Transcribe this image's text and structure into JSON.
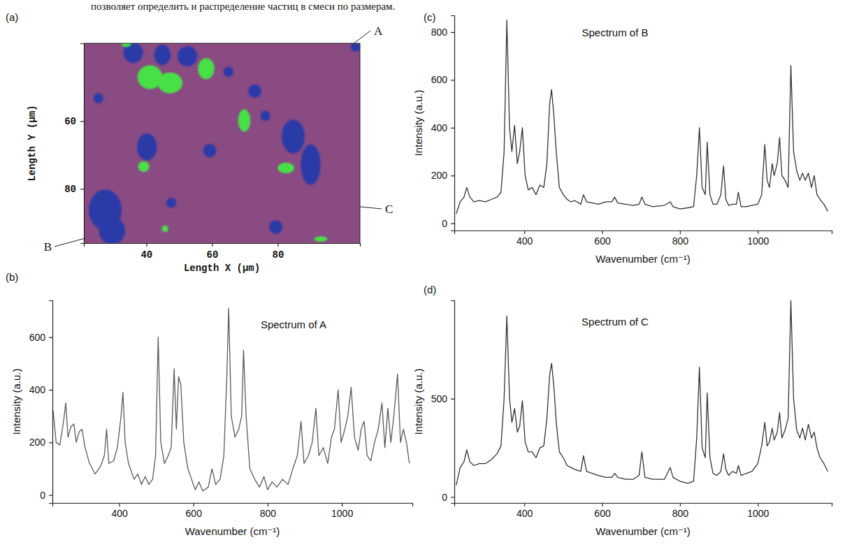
{
  "page_text": "позволяет определить и распределение частиц в смеси по размерам.",
  "chart_data": [
    {
      "type": "map",
      "label": "(a)",
      "xlabel": "Length X (µm)",
      "ylabel": "Length Y (µm)",
      "color": "#8a4a82",
      "xlim": [
        21,
        105
      ],
      "ylim": [
        37,
        96
      ],
      "xticks": [
        40,
        60,
        80
      ],
      "yticks": [
        60,
        80
      ],
      "grid": false,
      "annotations": [
        {
          "text": "A"
        },
        {
          "text": "B"
        },
        {
          "text": "C"
        }
      ],
      "series": [
        {
          "color": "#2b3aa8",
          "x": [
            36.0,
            44.9,
            52.5,
            65.0,
            73.0,
            76.2,
            40.2,
            59.3,
            84.7,
            90.0,
            27.5,
            29.6,
            47.6,
            79.4,
            103.7,
            25.4
          ],
          "y": [
            39.8,
            40.4,
            40.8,
            45.4,
            51.1,
            58.4,
            67.6,
            68.7,
            64.5,
            72.8,
            86.2,
            92.4,
            84.1,
            91.3,
            38.0,
            53.2
          ],
          "rx": [
            3,
            2.5,
            3,
            1.5,
            2,
            1.5,
            3,
            2,
            3.5,
            3,
            5,
            4,
            1.5,
            2,
            1.5,
            1.5
          ],
          "ry": [
            3,
            3,
            3,
            1.5,
            2,
            1.5,
            4,
            2,
            5,
            6,
            6,
            4,
            1.5,
            2,
            1.5,
            1.5
          ]
        },
        {
          "color": "#46e046",
          "x": [
            33.9,
            41.1,
            47.2,
            58.2,
            69.8,
            39.2,
            82.5,
            45.7,
            93.1
          ],
          "y": [
            37.1,
            47.0,
            48.7,
            44.5,
            59.8,
            73.4,
            73.8,
            91.8,
            94.8
          ],
          "rx": [
            1.5,
            3.8,
            3.8,
            2.5,
            1.9,
            1.7,
            2.5,
            1.0,
            2.0
          ],
          "ry": [
            1.0,
            3.5,
            3.1,
            3.1,
            3.3,
            1.6,
            1.6,
            1.0,
            0.8
          ]
        }
      ]
    },
    {
      "type": "line",
      "label": "(b)",
      "title": "Spectrum of A",
      "xlabel": "Wavenumber (cm⁻¹)",
      "ylabel": "Intensity (a.u.)",
      "color": "#5a5a5a",
      "xlim": [
        220,
        1190
      ],
      "ylim": [
        -30,
        740
      ],
      "xticks": [
        400,
        600,
        800,
        1000
      ],
      "yticks": [
        0,
        200,
        400,
        600
      ],
      "grid": false,
      "x": [
        222,
        230,
        240,
        250,
        256,
        262,
        270,
        278,
        284,
        292,
        300,
        308,
        320,
        335,
        350,
        360,
        366,
        372,
        385,
        395,
        405,
        410,
        416,
        425,
        440,
        450,
        460,
        470,
        480,
        490,
        498,
        505,
        512,
        522,
        532,
        540,
        548,
        554,
        560,
        566,
        574,
        585,
        595,
        605,
        615,
        625,
        640,
        650,
        660,
        672,
        682,
        690,
        695,
        702,
        712,
        722,
        730,
        735,
        742,
        752,
        765,
        778,
        790,
        800,
        812,
        825,
        840,
        855,
        868,
        880,
        890,
        898,
        910,
        920,
        930,
        938,
        950,
        962,
        972,
        980,
        990,
        998,
        1008,
        1016,
        1025,
        1034,
        1044,
        1052,
        1060,
        1068,
        1078,
        1088,
        1098,
        1108,
        1116,
        1124,
        1132,
        1140,
        1150,
        1158,
        1166,
        1174,
        1182
      ],
      "values": [
        320,
        200,
        190,
        280,
        350,
        220,
        260,
        270,
        200,
        240,
        250,
        180,
        120,
        80,
        110,
        150,
        250,
        120,
        130,
        180,
        300,
        390,
        200,
        120,
        60,
        80,
        40,
        70,
        40,
        60,
        150,
        600,
        200,
        120,
        150,
        180,
        480,
        250,
        450,
        420,
        200,
        100,
        60,
        20,
        50,
        15,
        30,
        100,
        40,
        60,
        150,
        450,
        710,
        300,
        220,
        250,
        300,
        550,
        300,
        100,
        60,
        30,
        70,
        20,
        50,
        30,
        60,
        40,
        100,
        150,
        280,
        120,
        150,
        200,
        330,
        150,
        180,
        120,
        220,
        250,
        400,
        200,
        250,
        300,
        410,
        220,
        170,
        250,
        280,
        150,
        130,
        200,
        250,
        350,
        180,
        330,
        200,
        300,
        460,
        200,
        250,
        200,
        120
      ]
    },
    {
      "type": "line",
      "label": "(c)",
      "title": "Spectrum of B",
      "xlabel": "Wavenumber (cm⁻¹)",
      "ylabel": "Intensity (a.u.)",
      "color": "#333333",
      "xlim": [
        220,
        1190
      ],
      "ylim": [
        -30,
        870
      ],
      "xticks": [
        400,
        600,
        800,
        1000
      ],
      "yticks": [
        0,
        200,
        400,
        600,
        800
      ],
      "grid": false,
      "x": [
        225,
        235,
        245,
        252,
        260,
        270,
        285,
        300,
        315,
        330,
        340,
        348,
        355,
        362,
        368,
        375,
        382,
        388,
        395,
        402,
        410,
        420,
        430,
        440,
        450,
        458,
        465,
        470,
        476,
        482,
        490,
        500,
        510,
        520,
        530,
        545,
        552,
        560,
        575,
        590,
        610,
        625,
        632,
        640,
        660,
        680,
        695,
        702,
        710,
        730,
        760,
        775,
        782,
        800,
        820,
        835,
        843,
        850,
        857,
        865,
        870,
        877,
        885,
        895,
        905,
        912,
        918,
        925,
        935,
        945,
        950,
        957,
        970,
        985,
        1000,
        1010,
        1018,
        1024,
        1030,
        1037,
        1042,
        1050,
        1056,
        1062,
        1070,
        1078,
        1085,
        1092,
        1100,
        1108,
        1115,
        1122,
        1130,
        1138,
        1145,
        1152,
        1160,
        1170,
        1180
      ],
      "values": [
        40,
        90,
        110,
        150,
        110,
        90,
        95,
        90,
        100,
        110,
        130,
        300,
        850,
        400,
        300,
        410,
        250,
        300,
        400,
        200,
        140,
        150,
        120,
        160,
        150,
        250,
        500,
        560,
        450,
        300,
        150,
        120,
        100,
        90,
        95,
        80,
        120,
        90,
        85,
        80,
        90,
        90,
        110,
        85,
        80,
        75,
        80,
        110,
        80,
        70,
        75,
        90,
        70,
        60,
        65,
        70,
        200,
        400,
        150,
        120,
        340,
        120,
        80,
        80,
        120,
        240,
        100,
        75,
        80,
        80,
        130,
        70,
        70,
        75,
        80,
        120,
        330,
        180,
        150,
        250,
        200,
        250,
        360,
        200,
        180,
        150,
        660,
        300,
        220,
        180,
        210,
        180,
        210,
        150,
        200,
        120,
        100,
        80,
        50
      ]
    },
    {
      "type": "line",
      "label": "(d)",
      "title": "Spectrum of C",
      "xlabel": "Wavenumber (cm⁻¹)",
      "ylabel": "Intensity (a.u.)",
      "color": "#333333",
      "xlim": [
        220,
        1190
      ],
      "ylim": [
        -30,
        1000
      ],
      "xticks": [
        400,
        600,
        800,
        1000
      ],
      "yticks": [
        0,
        500
      ],
      "grid": false,
      "x": [
        225,
        235,
        245,
        252,
        260,
        270,
        285,
        300,
        315,
        330,
        340,
        348,
        355,
        362,
        368,
        375,
        382,
        388,
        395,
        402,
        410,
        420,
        430,
        440,
        450,
        458,
        465,
        470,
        476,
        482,
        490,
        500,
        510,
        520,
        530,
        545,
        552,
        560,
        575,
        590,
        610,
        625,
        632,
        640,
        660,
        680,
        695,
        702,
        710,
        730,
        760,
        775,
        782,
        800,
        820,
        835,
        843,
        850,
        857,
        865,
        870,
        877,
        885,
        895,
        905,
        912,
        918,
        925,
        935,
        945,
        950,
        957,
        970,
        985,
        1000,
        1010,
        1018,
        1024,
        1030,
        1037,
        1042,
        1050,
        1056,
        1062,
        1070,
        1078,
        1085,
        1092,
        1100,
        1108,
        1115,
        1122,
        1130,
        1138,
        1145,
        1152,
        1160,
        1170,
        1180
      ],
      "values": [
        60,
        150,
        180,
        240,
        180,
        160,
        170,
        170,
        190,
        220,
        260,
        500,
        920,
        500,
        380,
        450,
        330,
        360,
        490,
        280,
        230,
        230,
        200,
        250,
        260,
        400,
        620,
        680,
        560,
        380,
        230,
        200,
        160,
        150,
        140,
        130,
        210,
        130,
        120,
        110,
        100,
        100,
        120,
        100,
        90,
        90,
        110,
        230,
        100,
        90,
        90,
        150,
        100,
        80,
        70,
        80,
        300,
        660,
        250,
        200,
        530,
        200,
        120,
        110,
        130,
        220,
        140,
        110,
        130,
        120,
        160,
        110,
        120,
        130,
        170,
        260,
        380,
        260,
        280,
        350,
        290,
        330,
        430,
        300,
        340,
        400,
        1000,
        500,
        340,
        300,
        350,
        290,
        370,
        300,
        330,
        250,
        200,
        170,
        130
      ]
    }
  ]
}
